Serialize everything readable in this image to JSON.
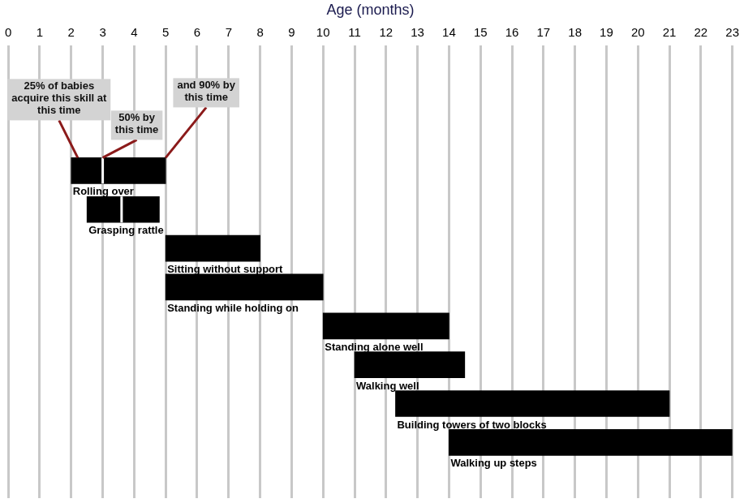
{
  "chart_data": {
    "type": "bar",
    "orientation": "horizontal",
    "x_label": "Age (months)",
    "xlim": [
      0,
      23
    ],
    "xticks": [
      0,
      1,
      2,
      3,
      4,
      5,
      6,
      7,
      8,
      9,
      10,
      11,
      12,
      13,
      14,
      15,
      16,
      17,
      18,
      19,
      20,
      21,
      22,
      23
    ],
    "grid": true,
    "tick_labels": "x",
    "color": "#000000",
    "categories": [
      "Rolling over",
      "Grasping rattle",
      "Sitting without support",
      "Standing while holding on",
      "Standing alone well",
      "Walking well",
      "Building towers of two blocks",
      "Walking up steps"
    ],
    "values": [
      [
        2,
        5
      ],
      [
        2.5,
        4.8
      ],
      [
        5,
        8
      ],
      [
        5,
        10
      ],
      [
        10,
        14
      ],
      [
        11,
        14.5
      ],
      [
        12.3,
        21
      ],
      [
        14,
        23
      ]
    ],
    "median": [
      3,
      3.6,
      null,
      null,
      null,
      null,
      null,
      null
    ],
    "annotations": [
      "25% of babies acquire this skill at this time",
      "50% by this time",
      "and 90% by this time"
    ]
  }
}
